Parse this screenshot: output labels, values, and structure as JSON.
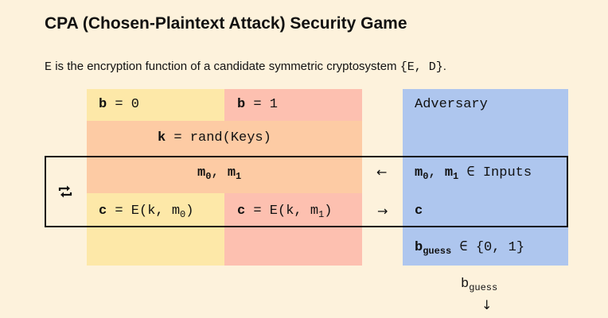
{
  "title": "CPA (Chosen-Plaintext Attack) Security Game",
  "subtitle": {
    "e_symbol": "E",
    "text": "is the encryption function of a candidate symmetric cryptosystem",
    "system": "{E, D}",
    "period": "."
  },
  "game": {
    "b0": {
      "var": "b",
      "rest": " = 0"
    },
    "b1": {
      "var": "b",
      "rest": " = 1"
    },
    "adversary": "Adversary",
    "key": {
      "var": "k",
      "rest": " = rand(Keys)"
    },
    "messages": {
      "m": "m",
      "sub0": "0",
      "sep": ", ",
      "sub1": "1"
    },
    "adv_messages": {
      "m": "m",
      "sub0": "0",
      "sep": ", ",
      "sub1": "1",
      "rest": " ∈ Inputs"
    },
    "cipher0": {
      "var": "c",
      "pre": " = E(k, m",
      "sub": "0",
      "post": ")"
    },
    "cipher1": {
      "var": "c",
      "pre": " = E(k, m",
      "sub": "1",
      "post": ")"
    },
    "adv_cipher": "c",
    "guess": {
      "var": "b",
      "sub": "guess",
      "rest": " ∈ {0, 1}"
    },
    "output": {
      "var": "b",
      "sub": "guess"
    },
    "arrow_left": "←",
    "arrow_right": "→",
    "arrow_down": "↓"
  },
  "colors": {
    "background": "#fdf2dc",
    "b0_column": "#fde8a8",
    "b1_column": "#fdc0b0",
    "shared_band": "#fdcba4",
    "adversary_column": "#aec6ee"
  },
  "icons": {
    "loop": "repeat-icon"
  }
}
